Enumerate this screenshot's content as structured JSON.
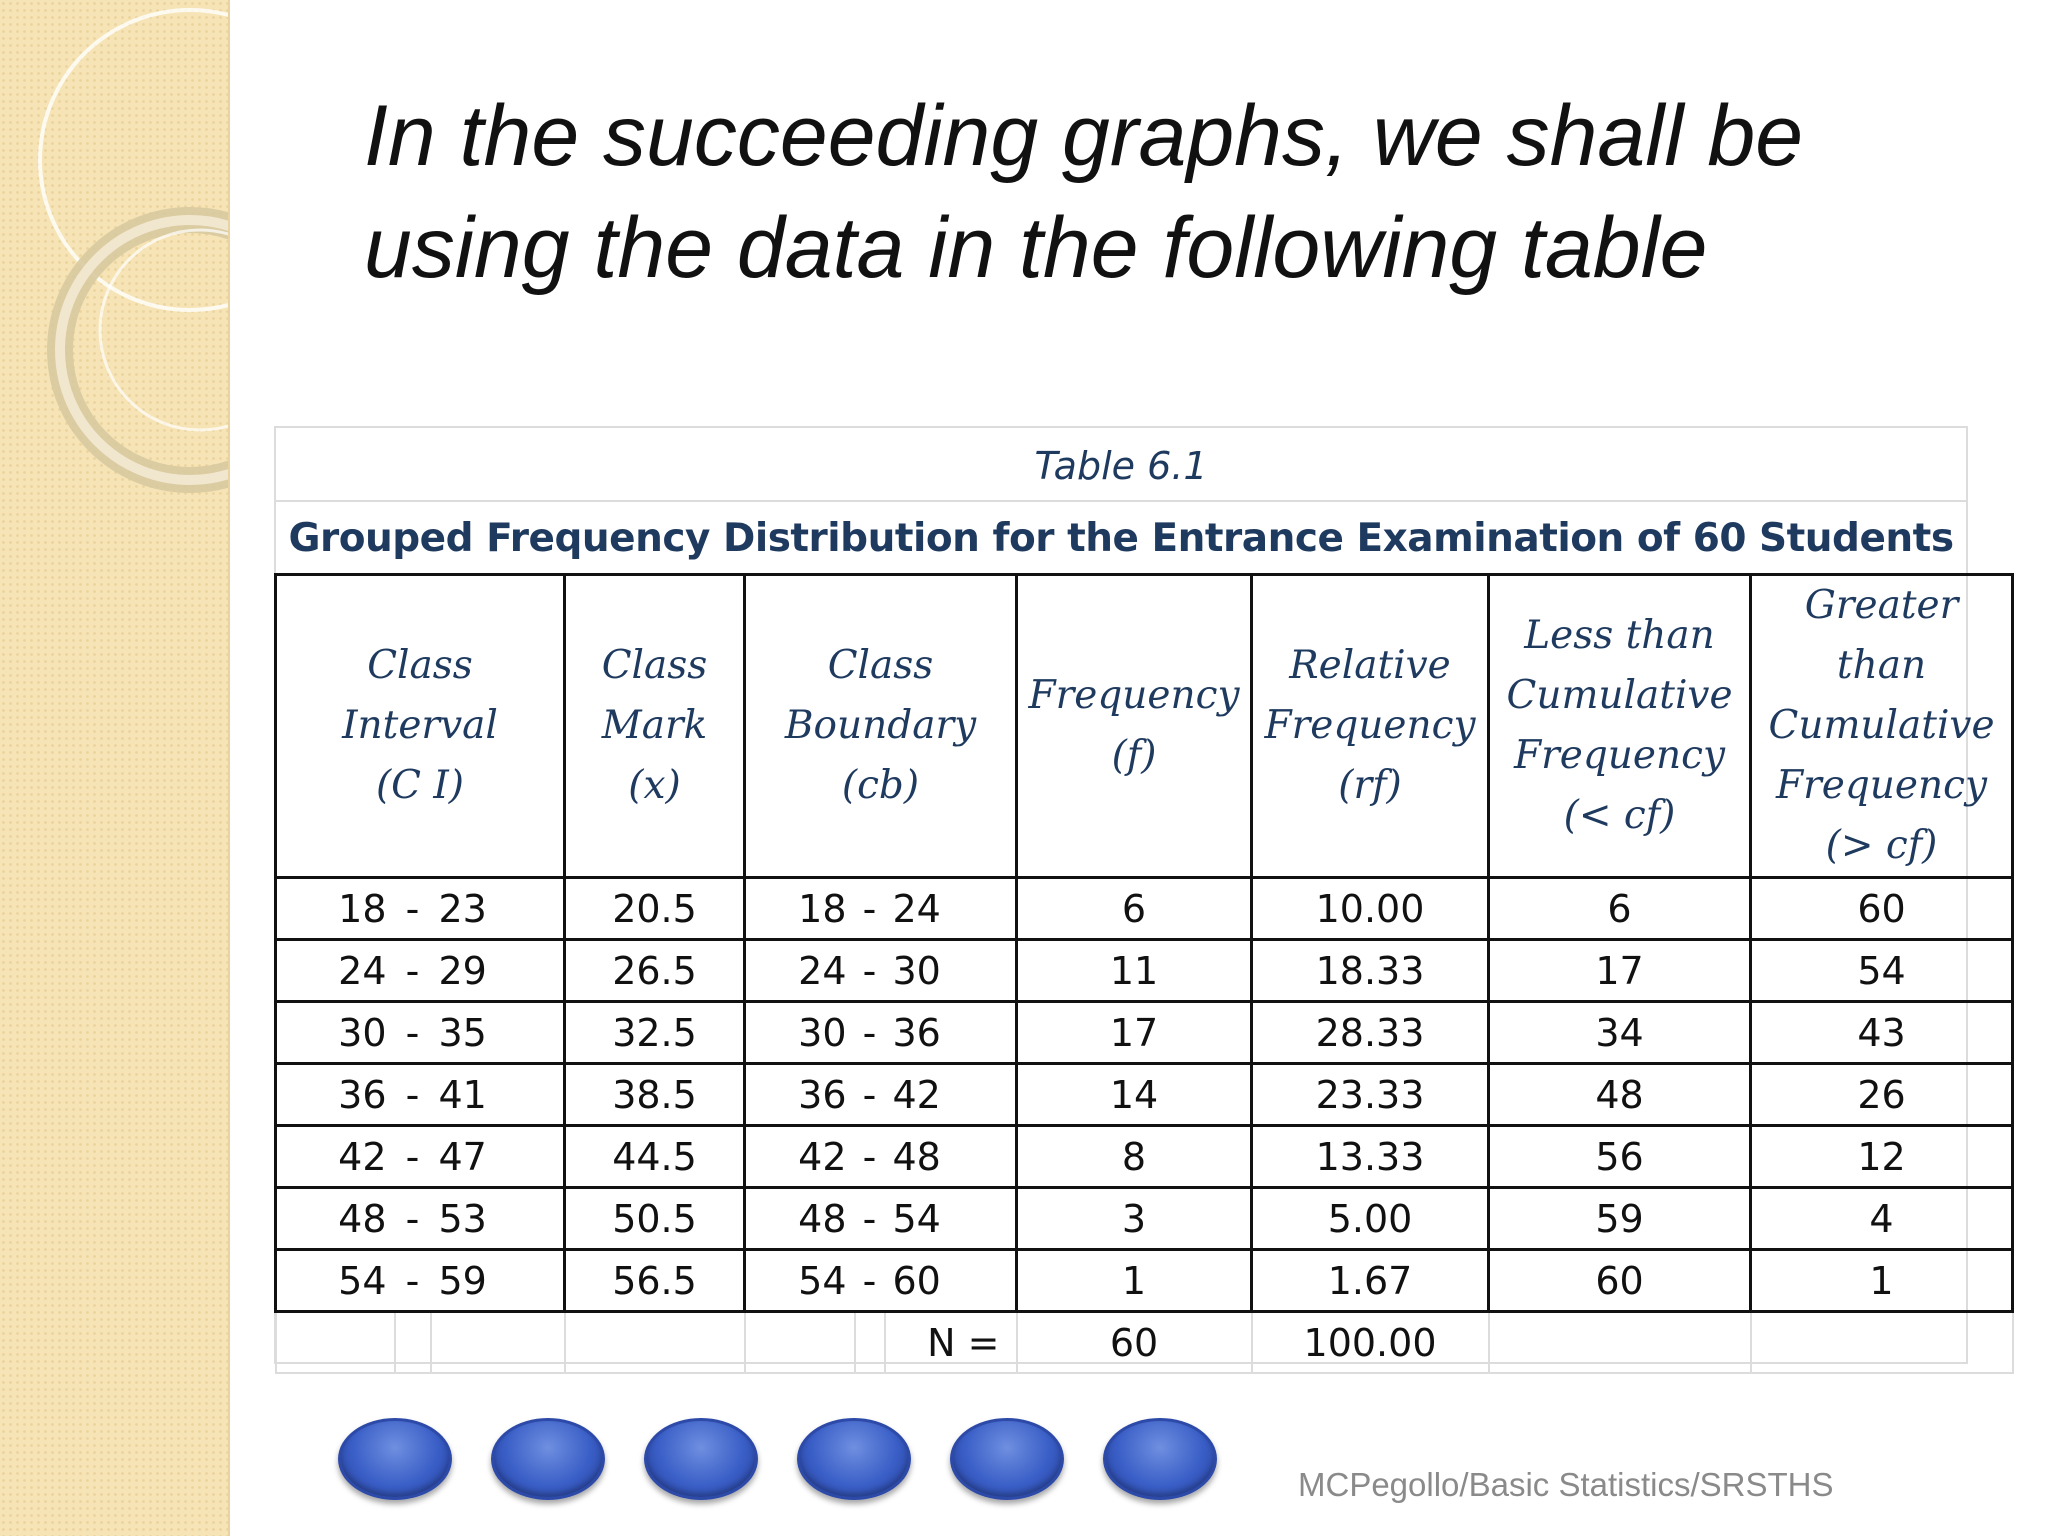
{
  "slide": {
    "title_line1": "In the succeeding graphs, we shall be",
    "title_line2": "using the data in the following table",
    "footer": "MCPegollo/Basic Statistics/SRSTHS"
  },
  "table": {
    "caption": "Table 6.1",
    "heading": "Grouped Frequency Distribution for the Entrance Examination of 60 Students",
    "headers": {
      "ci": [
        "Class",
        "Interval",
        "(C I)"
      ],
      "x": [
        "Class",
        "Mark",
        "(x)"
      ],
      "cb": [
        "Class",
        "Boundary",
        "(cb)"
      ],
      "f": [
        "Frequency",
        "(f)"
      ],
      "rf": [
        "Relative",
        "Frequency",
        "(rf)"
      ],
      "lcf": [
        "Less than",
        "Cumulative",
        "Frequency",
        "(< cf)"
      ],
      "gcf": [
        "Greater",
        "than",
        "Cumulative",
        "Frequency",
        "(> cf)"
      ]
    },
    "dash": "-",
    "rows": [
      {
        "ci_lo": "18",
        "ci_hi": "23",
        "x": "20.5",
        "cb_lo": "18",
        "cb_hi": "24",
        "f": "6",
        "rf": "10.00",
        "lcf": "6",
        "gcf": "60"
      },
      {
        "ci_lo": "24",
        "ci_hi": "29",
        "x": "26.5",
        "cb_lo": "24",
        "cb_hi": "30",
        "f": "11",
        "rf": "18.33",
        "lcf": "17",
        "gcf": "54"
      },
      {
        "ci_lo": "30",
        "ci_hi": "35",
        "x": "32.5",
        "cb_lo": "30",
        "cb_hi": "36",
        "f": "17",
        "rf": "28.33",
        "lcf": "34",
        "gcf": "43"
      },
      {
        "ci_lo": "36",
        "ci_hi": "41",
        "x": "38.5",
        "cb_lo": "36",
        "cb_hi": "42",
        "f": "14",
        "rf": "23.33",
        "lcf": "48",
        "gcf": "26"
      },
      {
        "ci_lo": "42",
        "ci_hi": "47",
        "x": "44.5",
        "cb_lo": "42",
        "cb_hi": "48",
        "f": "8",
        "rf": "13.33",
        "lcf": "56",
        "gcf": "12"
      },
      {
        "ci_lo": "48",
        "ci_hi": "53",
        "x": "50.5",
        "cb_lo": "48",
        "cb_hi": "54",
        "f": "3",
        "rf": "5.00",
        "lcf": "59",
        "gcf": "4"
      },
      {
        "ci_lo": "54",
        "ci_hi": "59",
        "x": "56.5",
        "cb_lo": "54",
        "cb_hi": "60",
        "f": "1",
        "rf": "1.67",
        "lcf": "60",
        "gcf": "1"
      }
    ],
    "totals": {
      "label": "N =",
      "f": "60",
      "rf": "100.00"
    }
  },
  "colors": {
    "heading": "#1f3a5f",
    "strip": "#f6e4b6",
    "oval": "#3a5fc7"
  }
}
